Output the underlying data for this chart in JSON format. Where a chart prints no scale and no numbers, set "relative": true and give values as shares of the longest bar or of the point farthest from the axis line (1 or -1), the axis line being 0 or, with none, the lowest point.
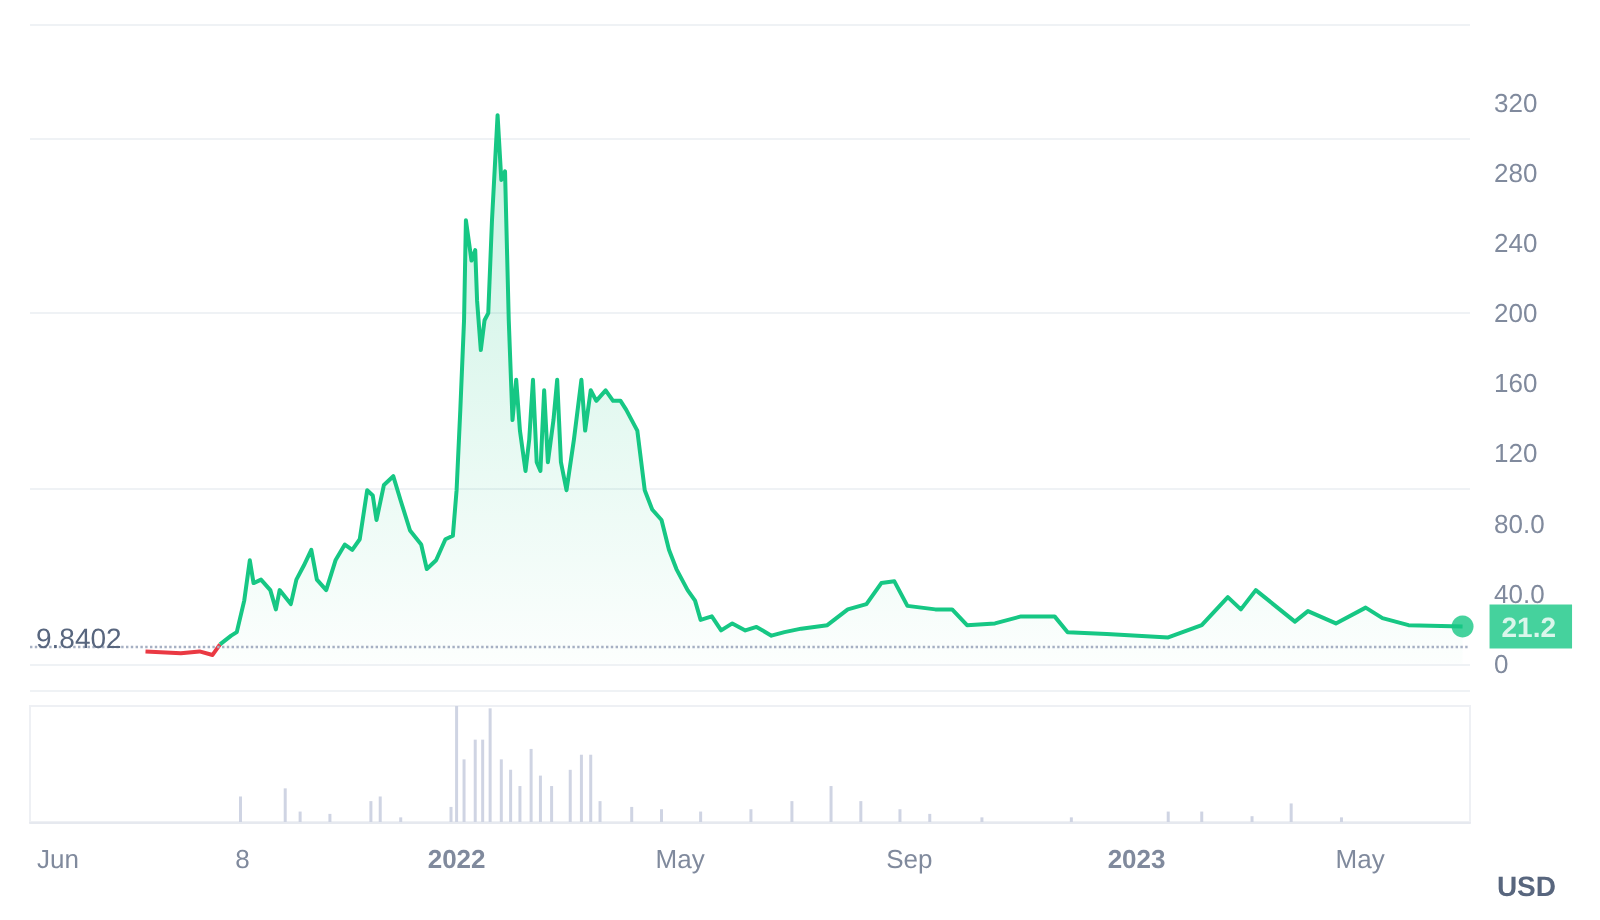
{
  "chart_data": [
    {
      "type": "area",
      "xlim": [
        "2021-05-17",
        "2023-06-29"
      ],
      "ylim": [
        -15,
        365
      ],
      "yticks": [
        0,
        {
          "value": 40,
          "label": "40.0"
        },
        {
          "value": 80,
          "label": "80.0"
        },
        120,
        160,
        200,
        240,
        280,
        320
      ],
      "grid": "y",
      "tick_labels": "y",
      "marker": "none",
      "ref_lines": [
        {
          "axis": "y",
          "value": 9.8402,
          "label": "9.8402",
          "color": "#a6b0c3",
          "line_style": "dotted"
        }
      ],
      "annotations": [
        {
          "text": "21.2",
          "x": "2023-06-25",
          "y": 21.2
        }
      ],
      "series": [
        {
          "type": "line",
          "color": "#ea3943",
          "x": [
            "2021-07-18",
            "2021-08-06",
            "2021-08-16",
            "2021-08-23",
            "2021-08-25",
            "2021-08-27"
          ],
          "values": [
            7,
            6,
            7,
            5,
            8,
            11
          ]
        },
        {
          "color": "#16c784",
          "x": [
            "2021-08-27",
            "2021-09-02",
            "2021-09-05",
            "2021-09-09",
            "2021-09-12",
            "2021-09-14",
            "2021-09-18",
            "2021-09-23",
            "2021-09-26",
            "2021-09-28",
            "2021-10-04",
            "2021-10-07",
            "2021-10-11",
            "2021-10-15",
            "2021-10-18",
            "2021-10-23",
            "2021-10-28",
            "2021-11-02",
            "2021-11-06",
            "2021-11-10",
            "2021-11-14",
            "2021-11-17",
            "2021-11-19",
            "2021-11-23",
            "2021-11-28",
            "2021-12-02",
            "2021-12-07",
            "2021-12-13",
            "2021-12-16",
            "2021-12-21",
            "2021-12-26",
            "2021-12-30",
            "2022-01-01",
            "2022-01-03",
            "2022-01-05",
            "2022-01-06",
            "2022-01-09",
            "2022-01-11",
            "2022-01-12",
            "2022-01-14",
            "2022-01-16",
            "2022-01-18",
            "2022-01-20",
            "2022-01-23",
            "2022-01-25",
            "2022-01-27",
            "2022-01-29",
            "2022-01-31",
            "2022-02-02",
            "2022-02-04",
            "2022-02-07",
            "2022-02-09",
            "2022-02-11",
            "2022-02-13",
            "2022-02-15",
            "2022-02-17",
            "2022-02-19",
            "2022-02-22",
            "2022-02-24",
            "2022-02-26",
            "2022-03-01",
            "2022-03-05",
            "2022-03-09",
            "2022-03-11",
            "2022-03-14",
            "2022-03-17",
            "2022-03-22",
            "2022-03-26",
            "2022-03-30",
            "2022-04-02",
            "2022-04-08",
            "2022-04-12",
            "2022-04-16",
            "2022-04-21",
            "2022-04-25",
            "2022-04-29",
            "2022-05-05",
            "2022-05-09",
            "2022-05-12",
            "2022-05-18",
            "2022-05-23",
            "2022-05-29",
            "2022-06-05",
            "2022-06-11",
            "2022-06-19",
            "2022-06-26",
            "2022-07-05",
            "2022-07-19",
            "2022-07-30",
            "2022-08-09",
            "2022-08-17",
            "2022-08-24",
            "2022-08-31",
            "2022-09-15",
            "2022-09-24",
            "2022-10-02",
            "2022-10-17",
            "2022-10-31",
            "2022-11-18",
            "2022-11-25",
            "2022-12-16",
            "2023-01-18",
            "2023-02-05",
            "2023-02-19",
            "2023-02-26",
            "2023-03-06",
            "2023-03-27",
            "2023-04-03",
            "2023-04-18",
            "2023-05-04",
            "2023-05-13",
            "2023-05-27",
            "2023-06-25"
          ],
          "values": [
            11,
            16,
            18,
            36,
            59,
            46,
            48,
            42,
            31,
            42,
            34,
            48,
            56,
            65,
            48,
            42,
            59,
            68,
            65,
            71,
            99,
            96,
            82,
            102,
            107,
            93,
            76,
            68,
            54,
            59,
            71,
            73,
            99,
            145,
            196,
            253,
            230,
            236,
            207,
            179,
            196,
            200,
            253,
            313,
            276,
            281,
            196,
            139,
            162,
            133,
            110,
            128,
            162,
            115,
            110,
            156,
            115,
            139,
            162,
            115,
            99,
            128,
            162,
            133,
            156,
            150,
            156,
            150,
            150,
            145,
            133,
            99,
            88,
            82,
            65,
            54,
            42,
            36,
            25,
            27,
            19,
            23,
            19,
            21,
            16,
            18,
            20,
            22,
            31,
            34,
            46,
            47,
            33,
            31,
            31,
            22,
            23,
            27,
            27,
            18,
            17,
            15,
            22,
            38,
            31,
            42,
            24,
            30,
            23,
            32,
            26,
            22,
            21.2
          ]
        }
      ]
    },
    {
      "type": "bar",
      "relative": true,
      "ylabel": "USD",
      "color": "#cfd4e3",
      "tick_labels": "x",
      "xlim": [
        "2021-05-17",
        "2023-06-29"
      ],
      "xticks": [
        {
          "value": "2021-06-01",
          "label": "Jun"
        },
        {
          "value": "2021-09-08",
          "label": "8"
        },
        {
          "value": "2022-01-01",
          "label": "2022"
        },
        {
          "value": "2022-05-01",
          "label": "May"
        },
        {
          "value": "2022-09-01",
          "label": "Sep"
        },
        {
          "value": "2023-01-01",
          "label": "2023"
        },
        {
          "value": "2023-05-01",
          "label": "May"
        }
      ],
      "x": [
        "2021-09-07",
        "2021-10-01",
        "2021-10-09",
        "2021-10-25",
        "2021-11-16",
        "2021-11-21",
        "2021-12-02",
        "2021-12-29",
        "2022-01-01",
        "2022-01-05",
        "2022-01-11",
        "2022-01-15",
        "2022-01-19",
        "2022-01-25",
        "2022-01-30",
        "2022-02-04",
        "2022-02-10",
        "2022-02-15",
        "2022-02-21",
        "2022-03-03",
        "2022-03-09",
        "2022-03-14",
        "2022-03-19",
        "2022-04-05",
        "2022-04-21",
        "2022-05-12",
        "2022-06-08",
        "2022-06-30",
        "2022-07-21",
        "2022-08-06",
        "2022-08-27",
        "2022-09-12",
        "2022-10-10",
        "2022-11-27",
        "2023-01-18",
        "2023-02-05",
        "2023-03-04",
        "2023-03-25",
        "2023-04-21"
      ],
      "values": [
        0.22,
        0.29,
        0.09,
        0.07,
        0.18,
        0.22,
        0.04,
        0.13,
        1.0,
        0.54,
        0.71,
        0.71,
        0.98,
        0.54,
        0.45,
        0.31,
        0.63,
        0.4,
        0.31,
        0.45,
        0.58,
        0.58,
        0.18,
        0.13,
        0.11,
        0.09,
        0.11,
        0.18,
        0.31,
        0.18,
        0.11,
        0.07,
        0.04,
        0.04,
        0.09,
        0.09,
        0.05,
        0.16,
        0.04
      ]
    }
  ]
}
